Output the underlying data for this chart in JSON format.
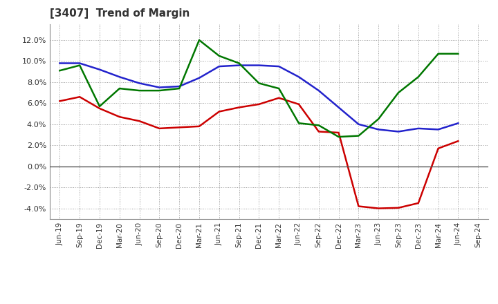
{
  "title": "[3407]  Trend of Margin",
  "x_labels": [
    "Jun-19",
    "Sep-19",
    "Dec-19",
    "Mar-20",
    "Jun-20",
    "Sep-20",
    "Dec-20",
    "Mar-21",
    "Jun-21",
    "Sep-21",
    "Dec-21",
    "Mar-22",
    "Jun-22",
    "Sep-22",
    "Dec-22",
    "Mar-23",
    "Jun-23",
    "Sep-23",
    "Dec-23",
    "Mar-24",
    "Jun-24",
    "Sep-24"
  ],
  "ordinary_income": [
    9.8,
    9.8,
    9.2,
    8.5,
    7.9,
    7.5,
    7.6,
    8.4,
    9.5,
    9.6,
    9.6,
    9.5,
    8.5,
    7.2,
    5.6,
    4.0,
    3.5,
    3.3,
    3.6,
    3.5,
    4.1,
    null
  ],
  "net_income": [
    6.2,
    6.6,
    5.5,
    4.7,
    4.3,
    3.6,
    3.7,
    3.8,
    5.2,
    5.6,
    5.9,
    6.5,
    5.9,
    3.3,
    3.2,
    -3.8,
    -4.0,
    -3.95,
    -3.5,
    1.7,
    2.4,
    null
  ],
  "operating_cashflow": [
    9.1,
    9.6,
    5.7,
    7.4,
    7.2,
    7.2,
    7.4,
    12.0,
    10.5,
    9.8,
    7.9,
    7.4,
    4.1,
    3.9,
    2.8,
    2.9,
    4.5,
    7.0,
    8.5,
    10.7,
    10.7,
    null
  ],
  "ylim": [
    -5.0,
    13.5
  ],
  "yticks": [
    -4.0,
    -2.0,
    0.0,
    2.0,
    4.0,
    6.0,
    8.0,
    10.0,
    12.0
  ],
  "line_color_ordinary": "#2222CC",
  "line_color_net": "#CC0000",
  "line_color_cashflow": "#007700",
  "background_color": "#FFFFFF",
  "grid_color": "#999999",
  "title_color": "#333333",
  "title_fontsize": 11
}
